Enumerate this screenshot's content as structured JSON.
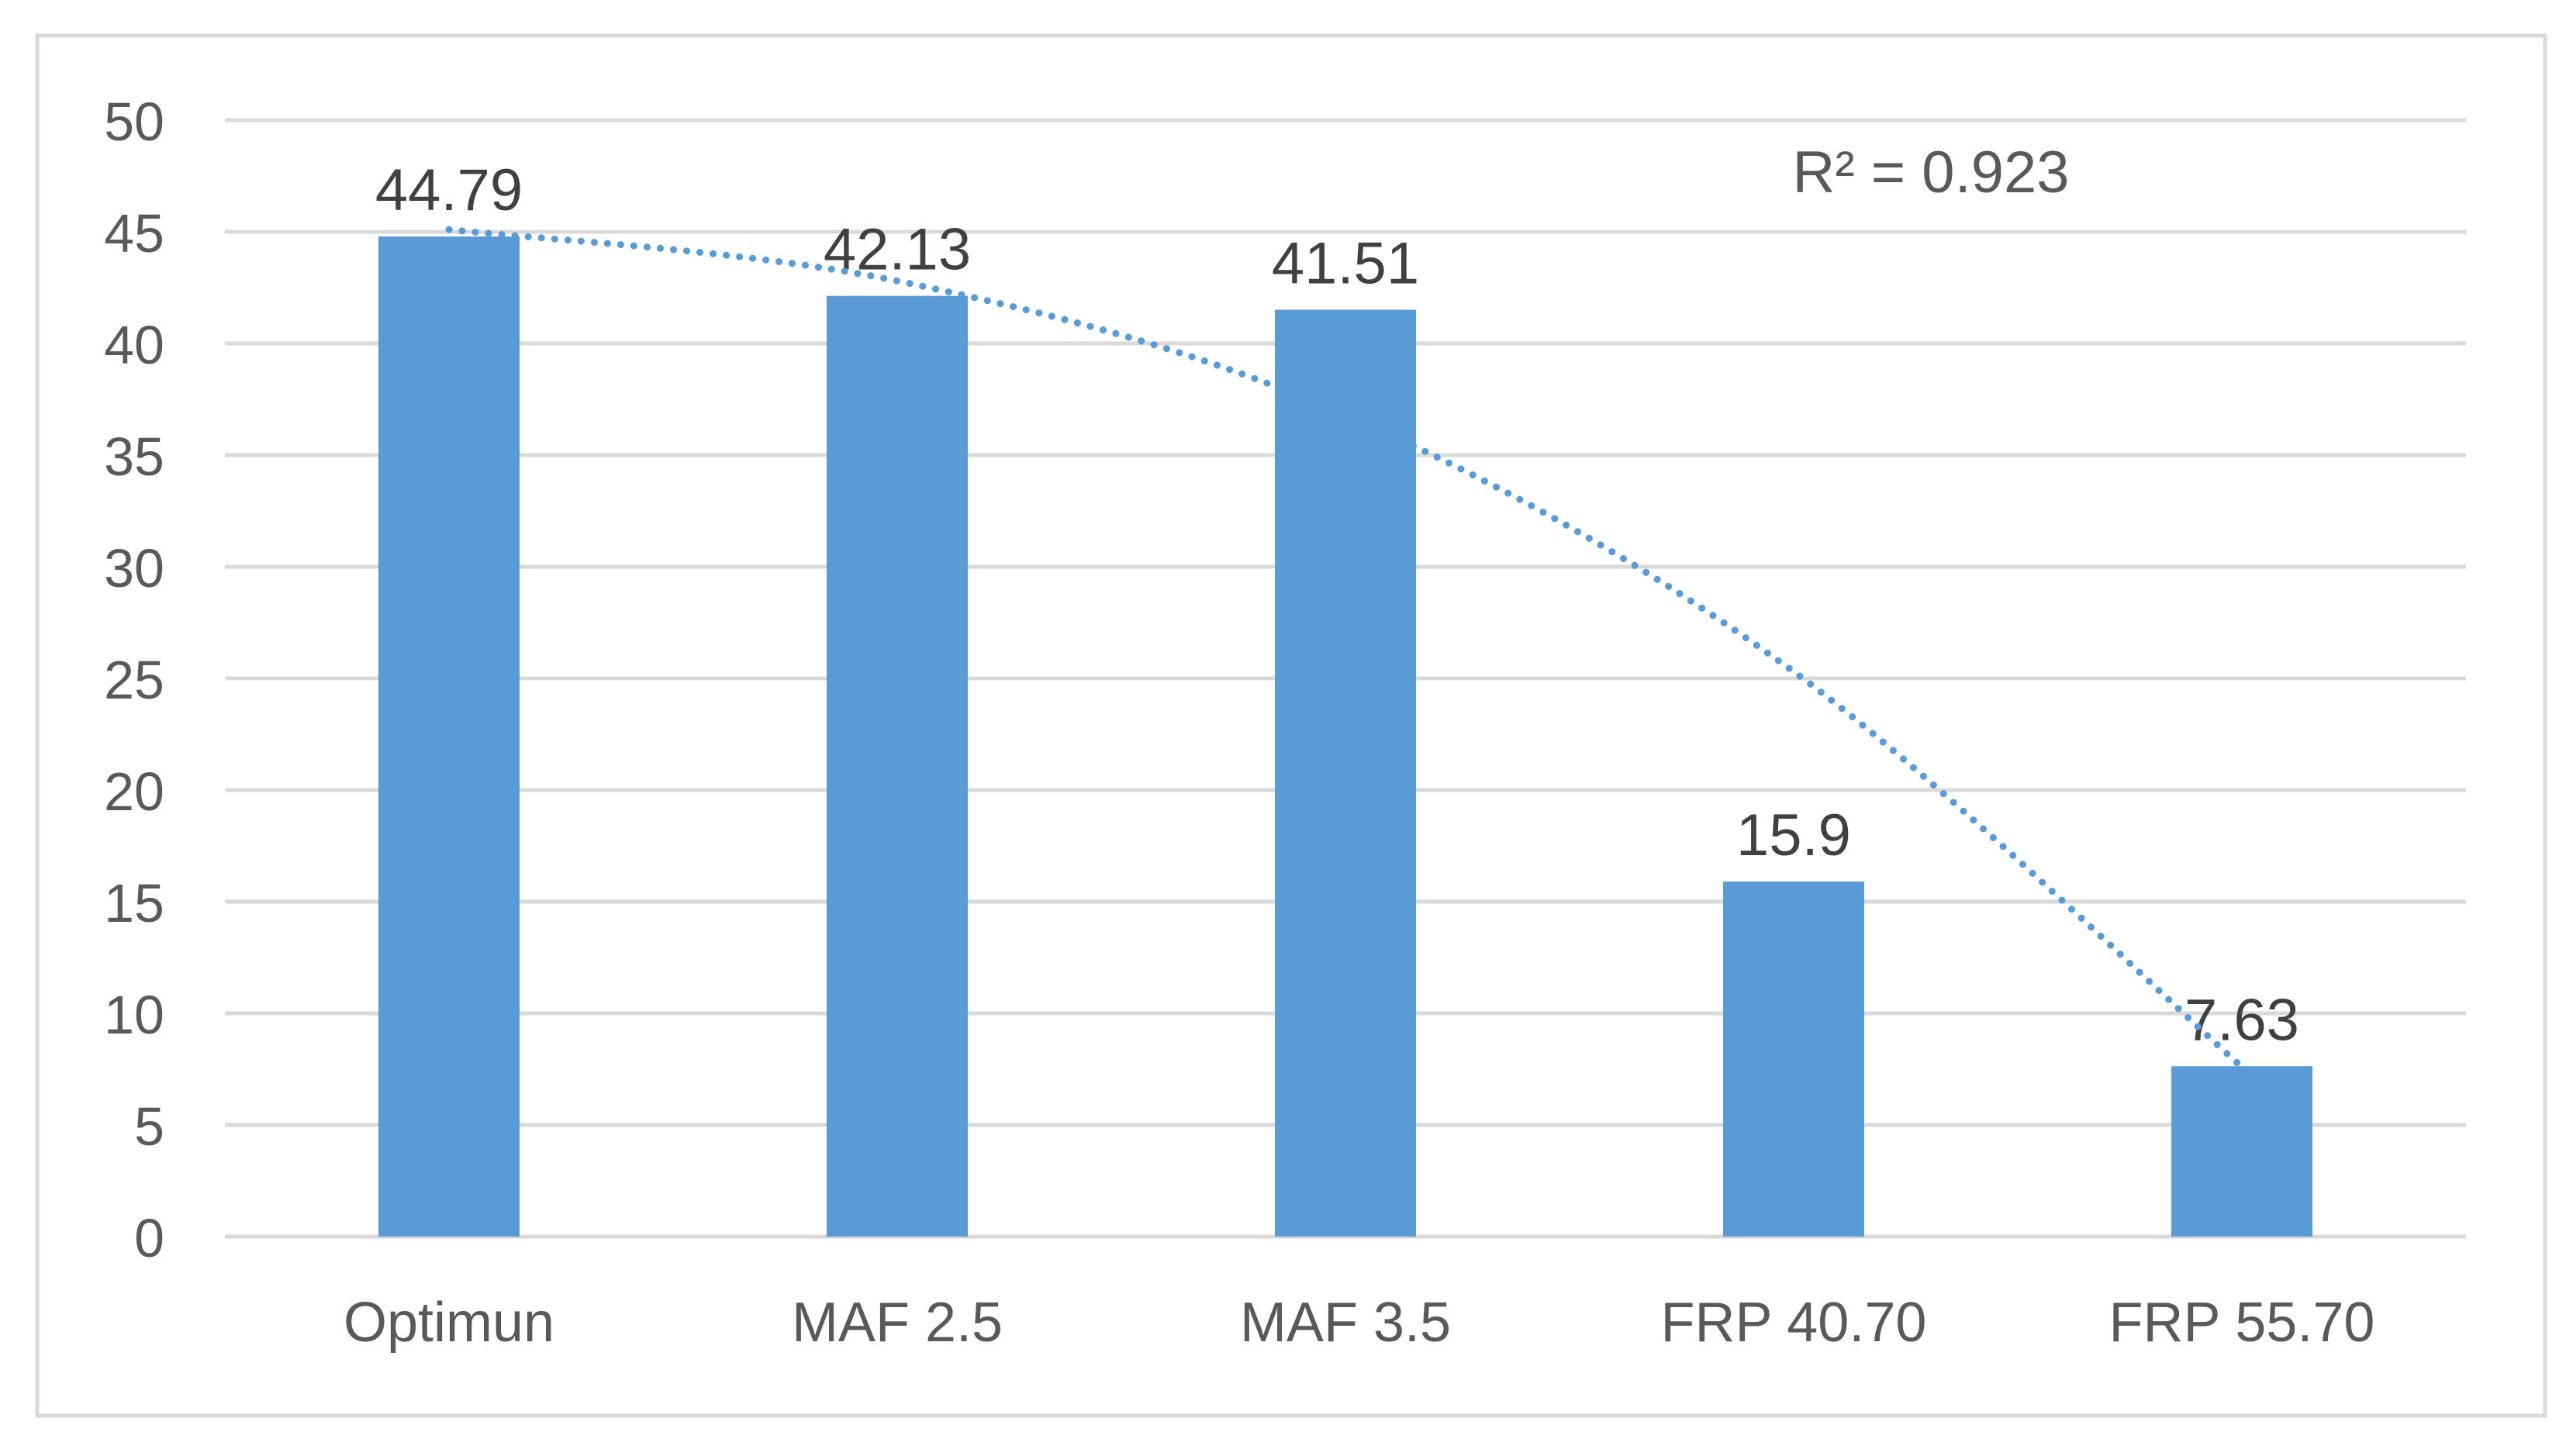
{
  "chart_data": {
    "type": "bar",
    "title": "",
    "xlabel": "",
    "ylabel": "",
    "categories": [
      "Optimun",
      "MAF 2.5",
      "MAF 3.5",
      "FRP 40.70",
      "FRP 55.70"
    ],
    "values": [
      44.79,
      42.13,
      41.51,
      15.9,
      7.63
    ],
    "data_labels": [
      "44.79",
      "42.13",
      "41.51",
      "15.9",
      "7.63"
    ],
    "ylim": [
      0,
      50
    ],
    "yticks": [
      0,
      5,
      10,
      15,
      20,
      25,
      30,
      35,
      40,
      45,
      50
    ],
    "ytick_labels": [
      "0",
      "5",
      "10",
      "15",
      "20",
      "25",
      "30",
      "35",
      "40",
      "45",
      "50"
    ],
    "grid": true,
    "legend": "none",
    "trendline": {
      "type": "polynomial",
      "style": "dotted",
      "points": [
        45.1,
        42.8,
        36.8,
        25.3,
        7.6
      ],
      "annotation": "R² = 0.923"
    },
    "colors": {
      "bar": "#5b9bd5",
      "trendline": "#5b9bd5",
      "grid": "#d9d9d9",
      "text": "#404040",
      "tick_text": "#595959",
      "frame": "#d9d9d9"
    }
  }
}
